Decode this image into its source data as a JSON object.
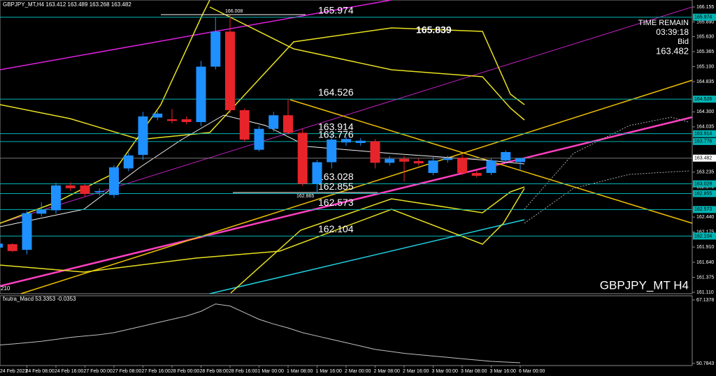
{
  "chart_data": {
    "type": "candlestick",
    "title": "GBPJPY_MT,H4",
    "watermark": "GBPJPY_MT H4",
    "categories": [
      "24 Feb 2023",
      null,
      "24 Feb 08:00",
      null,
      "24 Feb 16:00",
      null,
      "27 Feb 00:00",
      null,
      "27 Feb 08:00",
      null,
      "27 Feb 16:00",
      null,
      "28 Feb 00:00",
      null,
      "28 Feb 08:00",
      null,
      "28 Feb 16:00",
      null,
      "1 Mar 00:00",
      null,
      "1 Mar 08:00",
      null,
      "1 Mar 16:00",
      null,
      "2 Mar 00:00",
      null,
      "2 Mar 08:00",
      null,
      "2 Mar 16:00",
      null,
      "3 Mar 00:00",
      null,
      "3 Mar 08:00",
      null,
      "3 Mar 16:00",
      null,
      "6 Mar 00:00"
    ],
    "open": [
      161.9,
      161.96,
      161.86,
      162.5,
      162.56,
      163.0,
      163.0,
      162.88,
      162.83,
      163.3,
      163.54,
      164.2,
      164.17,
      164.17,
      164.12,
      165.1,
      165.72,
      164.33,
      163.63,
      164.0,
      164.24,
      163.93,
      163.03,
      163.41,
      163.76,
      163.75,
      163.78,
      163.4,
      163.47,
      163.43,
      163.22,
      163.45,
      163.49,
      163.22,
      163.22,
      163.44,
      163.412
    ],
    "high": [
      162.0,
      161.98,
      162.55,
      162.7,
      163.05,
      163.05,
      163.02,
      162.95,
      163.36,
      163.58,
      164.3,
      164.32,
      164.35,
      164.22,
      165.2,
      165.97,
      166.01,
      164.36,
      164.05,
      164.3,
      164.52,
      164.0,
      163.45,
      163.9,
      163.86,
      163.84,
      163.82,
      163.52,
      163.52,
      163.48,
      163.5,
      163.53,
      163.55,
      163.26,
      163.48,
      163.62,
      163.489
    ],
    "low": [
      161.85,
      161.82,
      161.78,
      162.45,
      162.5,
      162.9,
      162.8,
      162.82,
      162.78,
      163.25,
      163.45,
      164.15,
      164.1,
      164.08,
      164.05,
      165.05,
      164.28,
      163.77,
      163.6,
      163.95,
      163.9,
      162.99,
      162.86,
      163.3,
      163.7,
      163.7,
      163.3,
      163.35,
      163.07,
      163.35,
      163.18,
      163.4,
      163.18,
      163.14,
      163.18,
      163.4,
      163.268
    ],
    "close": [
      161.97,
      161.84,
      162.51,
      162.57,
      163.0,
      162.95,
      162.85,
      162.9,
      163.32,
      163.53,
      164.22,
      164.27,
      164.14,
      164.12,
      165.1,
      165.72,
      164.33,
      163.81,
      164.0,
      164.24,
      163.93,
      163.03,
      163.41,
      163.81,
      163.82,
      163.79,
      163.4,
      163.47,
      163.42,
      163.39,
      163.44,
      163.48,
      163.22,
      163.17,
      163.44,
      163.59,
      163.482
    ],
    "up_color": "#1e90ff",
    "down_color": "#e8242b",
    "ylim": [
      161.11,
      166.155
    ],
    "yticks": [
      166.155,
      {
        "value": 165.89,
        "label": "165.890"
      },
      {
        "value": 165.63,
        "label": "165.630"
      },
      165.365,
      {
        "value": 165.1,
        "label": "165.100"
      },
      164.835,
      {
        "value": 164.3,
        "label": "164.300"
      },
      164.035,
      163.235,
      {
        "value": 162.97,
        "label": "162.970"
      },
      {
        "value": 162.44,
        "label": "162.440"
      },
      162.175,
      {
        "value": 161.91,
        "label": "161.910"
      },
      {
        "value": 161.64,
        "label": "161.640"
      },
      161.375,
      {
        "value": 161.11,
        "label": "161.110"
      }
    ],
    "levels": [
      165.974,
      164.526,
      163.914,
      163.776,
      163.028,
      162.855,
      162.573,
      162.104
    ],
    "level_color": "#00b4b4",
    "bid": 163.482,
    "info": {
      "time_label": "TIME REMAIN",
      "time": "03:39:18",
      "bid_label": "Bid"
    },
    "annotations": {
      "peak": "165.839",
      "high_mark": "166.008",
      "low_mark": "162.865",
      "left_edge": "210"
    },
    "macd": {
      "label": "fxutra_Macd 53.3353 -0.0353",
      "ylim": [
        50.7843,
        67.1378
      ],
      "yticks": [
        67.1378,
        50.7843
      ],
      "color": "#c0c0c0",
      "values": [
        55.5,
        55.79,
        56.13,
        56.48,
        56.99,
        57.51,
        57.85,
        58.2,
        58.71,
        59.57,
        60.43,
        61.29,
        62.15,
        63.01,
        64.22,
        66.11,
        65.59,
        63.87,
        62.15,
        60.95,
        59.92,
        58.71,
        57.85,
        56.99,
        56.13,
        55.27,
        54.41,
        53.9,
        53.38,
        53.04,
        52.69,
        52.35,
        52.0,
        51.66,
        51.32,
        51.14,
        50.97
      ]
    }
  }
}
